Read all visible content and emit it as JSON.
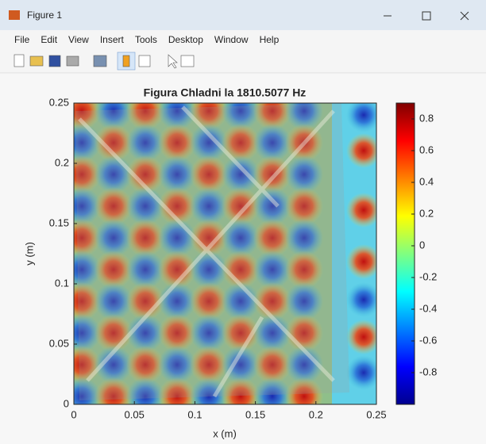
{
  "window": {
    "title": "Figure 1"
  },
  "menu": [
    "File",
    "Edit",
    "View",
    "Insert",
    "Tools",
    "Desktop",
    "Window",
    "Help"
  ],
  "chart_data": {
    "type": "heatmap",
    "title": "Figura Chladni la 1810.5077 Hz",
    "x_label": "x (m)",
    "y_label": "y (m)",
    "xlim": [
      0,
      0.25
    ],
    "ylim": [
      0,
      0.25
    ],
    "xticks": [
      0,
      0.05,
      0.1,
      0.15,
      0.2,
      0.25
    ],
    "yticks": [
      0,
      0.05,
      0.1,
      0.15,
      0.2,
      0.25
    ],
    "colorbar": {
      "colormap": "jet",
      "clim": [
        -1,
        0.9
      ],
      "ticks": [
        0.8,
        0.6,
        0.4,
        0.2,
        0,
        -0.2,
        -0.4,
        -0.6,
        -0.8
      ]
    }
  }
}
